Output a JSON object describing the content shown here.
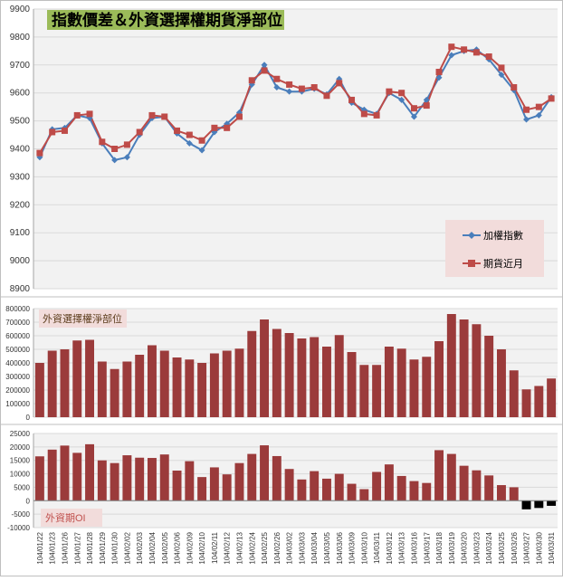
{
  "colors": {
    "index_line": "#4a7ebb",
    "futures_line": "#be4b48",
    "bars": "#9b3b3b",
    "negative_bars": "#000000",
    "title_bg": "#9bbb59",
    "plot_bg": "#f2f2f2",
    "legend_bg": "#f2dcdb",
    "label_box_bg": "#f2dcdb"
  },
  "chart_data": [
    {
      "type": "line",
      "title": "指數價差＆外資選擇權期貨淨部位",
      "ylim": [
        8900,
        9900
      ],
      "yticks": [
        "8900",
        "9000",
        "9100",
        "9200",
        "9300",
        "9400",
        "9500",
        "9600",
        "9700",
        "9800",
        "9900"
      ],
      "legend_position": "right",
      "series": [
        {
          "name": "加權指數",
          "values": [
            9370,
            9470,
            9475,
            9520,
            9510,
            9420,
            9360,
            9370,
            9450,
            9510,
            9515,
            9455,
            9420,
            9395,
            9460,
            9490,
            9530,
            9630,
            9700,
            9620,
            9605,
            9605,
            9615,
            9595,
            9650,
            9565,
            9540,
            9525,
            9600,
            9575,
            9515,
            9575,
            9655,
            9735,
            9750,
            9755,
            9720,
            9665,
            9610,
            9505,
            9520,
            9585
          ]
        },
        {
          "name": "期貨近月",
          "values": [
            9385,
            9460,
            9465,
            9520,
            9525,
            9425,
            9400,
            9415,
            9460,
            9520,
            9515,
            9465,
            9450,
            9430,
            9475,
            9475,
            9515,
            9645,
            9680,
            9650,
            9630,
            9615,
            9620,
            9590,
            9635,
            9575,
            9525,
            9520,
            9605,
            9600,
            9545,
            9555,
            9675,
            9765,
            9755,
            9745,
            9730,
            9690,
            9620,
            9540,
            9550,
            9580
          ]
        }
      ]
    },
    {
      "type": "bar",
      "title": "外資選擇權淨部位",
      "ylim": [
        0,
        800000
      ],
      "yticks": [
        "0",
        "100000",
        "200000",
        "300000",
        "400000",
        "500000",
        "600000",
        "700000",
        "800000"
      ],
      "values": [
        400000,
        490000,
        500000,
        565000,
        570000,
        410000,
        355000,
        410000,
        460000,
        530000,
        490000,
        440000,
        425000,
        400000,
        470000,
        490000,
        505000,
        635000,
        720000,
        650000,
        620000,
        580000,
        590000,
        520000,
        605000,
        480000,
        385000,
        385000,
        520000,
        505000,
        425000,
        445000,
        560000,
        760000,
        720000,
        685000,
        600000,
        500000,
        345000,
        205000,
        230000,
        285000
      ]
    },
    {
      "type": "bar",
      "title": "外資期OI",
      "ylim": [
        -10000,
        25000
      ],
      "yticks": [
        "-10000",
        "-5000",
        "0",
        "5000",
        "10000",
        "15000",
        "20000",
        "25000"
      ],
      "values": [
        16500,
        19000,
        20500,
        17800,
        21000,
        15000,
        14000,
        16900,
        16000,
        15900,
        17200,
        11200,
        14700,
        8800,
        12400,
        9800,
        14000,
        17400,
        20600,
        16600,
        11800,
        7900,
        11000,
        8200,
        10000,
        6300,
        4300,
        10700,
        13500,
        9200,
        7300,
        6600,
        18800,
        17400,
        13000,
        11300,
        9400,
        5800,
        5000,
        -3200,
        -2700,
        -1900
      ],
      "categories": [
        "104/01/22",
        "104/01/23",
        "104/01/26",
        "104/01/27",
        "104/01/28",
        "104/01/29",
        "104/01/30",
        "104/02/02",
        "104/02/03",
        "104/02/04",
        "104/02/05",
        "104/02/06",
        "104/02/09",
        "104/02/10",
        "104/02/11",
        "104/02/12",
        "104/02/13",
        "104/02/24",
        "104/02/25",
        "104/02/26",
        "104/03/02",
        "104/03/03",
        "104/03/04",
        "104/03/05",
        "104/03/06",
        "104/03/09",
        "104/03/10",
        "104/03/11",
        "104/03/12",
        "104/03/13",
        "104/03/16",
        "104/03/17",
        "104/03/18",
        "104/03/19",
        "104/03/20",
        "104/03/23",
        "104/03/24",
        "104/03/25",
        "104/03/26",
        "104/03/27",
        "104/03/30",
        "104/03/31"
      ]
    }
  ]
}
